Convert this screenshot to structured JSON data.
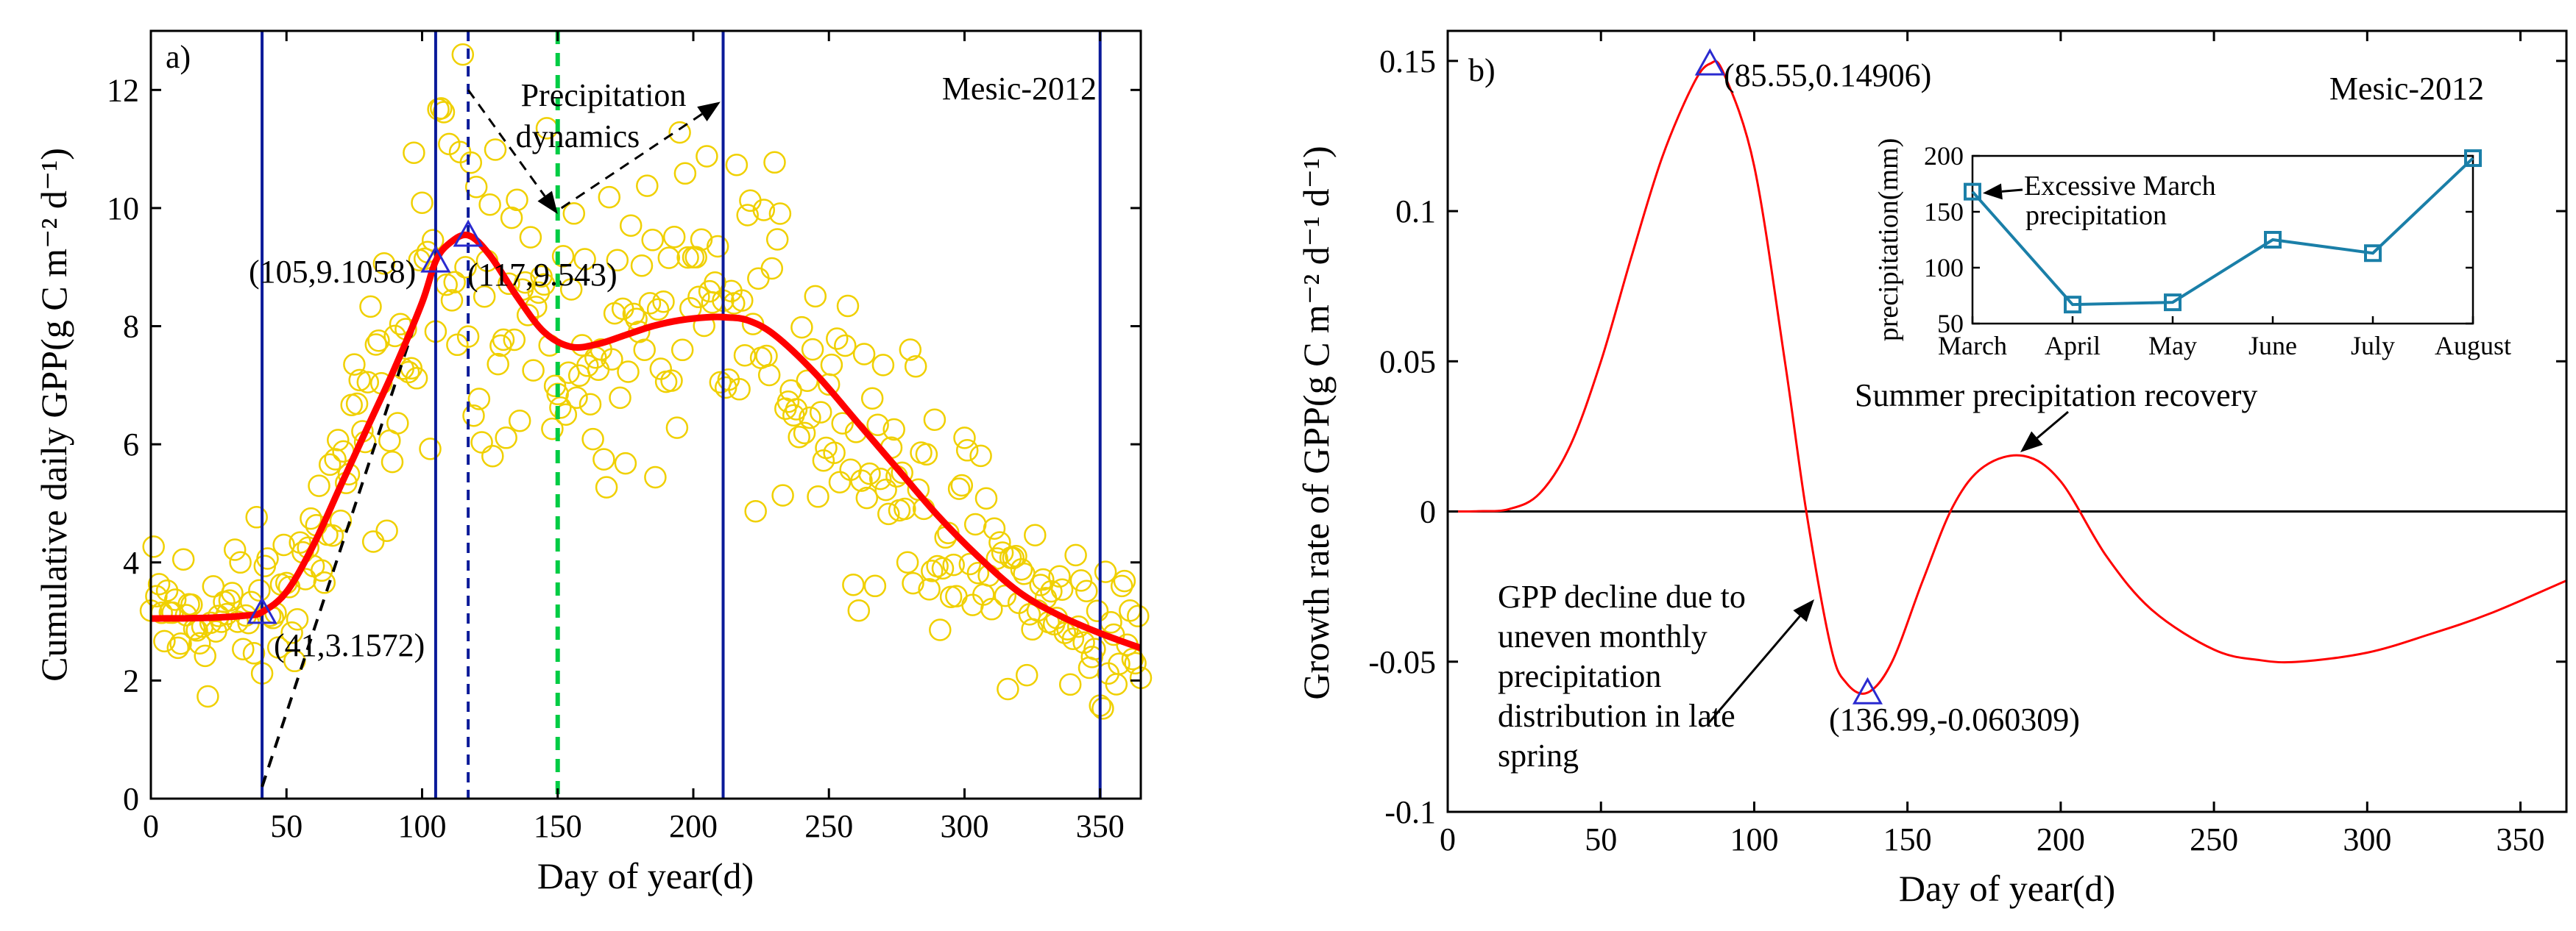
{
  "chart_data": [
    {
      "panel": "a)",
      "type": "scatter",
      "site_label": "Mesic-2012",
      "xlabel": "Day of year(d)",
      "ylabel": "Cumulative daily GPP(g C m⁻² d⁻¹)",
      "xlim": [
        0,
        365
      ],
      "ylim": [
        0,
        13
      ],
      "xticks": [
        0,
        50,
        100,
        150,
        200,
        250,
        300,
        350
      ],
      "yticks": [
        0,
        2,
        4,
        6,
        8,
        10,
        12
      ],
      "scatter_color": "#f0d000",
      "fit_curve": {
        "color": "#ff0000",
        "x": [
          0,
          20,
          35,
          41,
          50,
          60,
          70,
          80,
          90,
          100,
          105,
          110,
          117,
          125,
          135,
          145,
          155,
          165,
          175,
          185,
          195,
          205,
          212,
          220,
          230,
          245,
          260,
          275,
          290,
          305,
          320,
          335,
          350,
          365
        ],
        "y": [
          3.05,
          3.06,
          3.1,
          3.16,
          3.5,
          4.3,
          5.3,
          6.3,
          7.3,
          8.4,
          9.1,
          9.4,
          9.54,
          9.2,
          8.5,
          7.9,
          7.65,
          7.7,
          7.85,
          8.0,
          8.1,
          8.15,
          8.15,
          8.1,
          7.85,
          7.2,
          6.4,
          5.6,
          4.8,
          4.1,
          3.5,
          3.1,
          2.8,
          2.55
        ]
      },
      "vertical_lines": [
        {
          "x": 41,
          "style": "solid",
          "color": "#0a1a99"
        },
        {
          "x": 105,
          "style": "solid",
          "color": "#0a1a99"
        },
        {
          "x": 117,
          "style": "dashed",
          "color": "#0a1a99"
        },
        {
          "x": 150,
          "style": "dashed",
          "color": "#00cc44"
        },
        {
          "x": 211,
          "style": "solid",
          "color": "#0a1a99"
        },
        {
          "x": 350,
          "style": "solid",
          "color": "#0a1a99"
        }
      ],
      "tangent_line": {
        "x": [
          41,
          105
        ],
        "y": [
          0.2,
          9.1
        ]
      },
      "markers": [
        {
          "x": 41,
          "y": 3.1572,
          "label": "(41,3.1572)"
        },
        {
          "x": 105,
          "y": 9.1058,
          "label": "(105,9.1058)"
        },
        {
          "x": 117,
          "y": 9.543,
          "label": "(117,9.543)"
        }
      ],
      "annotation": {
        "line1": "Precipitation",
        "line2": "dynamics",
        "arrow_tip_1": [
          150,
          9.9
        ],
        "arrow_tip_2": [
          210,
          11.8
        ],
        "arrow_base": [
          117,
          12.0
        ]
      },
      "observations": {
        "x_start": 0,
        "x_end": 365,
        "count": 365
      }
    },
    {
      "panel": "b)",
      "type": "line",
      "site_label": "Mesic-2012",
      "xlabel": "Day of year(d)",
      "ylabel": "Growth rate of GPP(g C m⁻² d⁻¹ d⁻¹)",
      "xlim": [
        0,
        365
      ],
      "ylim": [
        -0.1,
        0.16
      ],
      "xticks": [
        0,
        50,
        100,
        150,
        200,
        250,
        300,
        350
      ],
      "yticks": [
        -0.1,
        -0.05,
        0,
        0.05,
        0.1,
        0.15
      ],
      "ytick_labels": [
        "-0.1",
        "-0.05",
        "0",
        "0.05",
        "0.1",
        "0.15"
      ],
      "line_color": "#ff0000",
      "curve": {
        "x": [
          0,
          10,
          20,
          30,
          40,
          50,
          60,
          70,
          80,
          85.55,
          90,
          100,
          110,
          117,
          125,
          130,
          136.99,
          145,
          155,
          165,
          175,
          188,
          200,
          215,
          230,
          250,
          265,
          278,
          300,
          320,
          340,
          365
        ],
        "y": [
          0,
          0.0001,
          0.0008,
          0.006,
          0.022,
          0.05,
          0.085,
          0.118,
          0.142,
          0.14906,
          0.146,
          0.115,
          0.05,
          0.0,
          -0.045,
          -0.057,
          -0.060309,
          -0.05,
          -0.023,
          0.002,
          0.015,
          0.0185,
          0.01,
          -0.015,
          -0.033,
          -0.046,
          -0.0495,
          -0.05,
          -0.047,
          -0.041,
          -0.034,
          -0.023
        ]
      },
      "zero_line": 0,
      "markers": [
        {
          "x": 85.55,
          "y": 0.14906,
          "label": "(85.55,0.14906)"
        },
        {
          "x": 136.99,
          "y": -0.060309,
          "label": "(136.99,-0.060309)"
        }
      ],
      "annotations": {
        "summer": "Summer precipitation recovery",
        "decline_lines": [
          "GPP decline due to",
          "uneven monthly",
          "precipitation",
          "distribution in late",
          "spring"
        ]
      },
      "inset": {
        "type": "line",
        "ylabel": "precipitation(mm)",
        "categories": [
          "March",
          "April",
          "May",
          "June",
          "July",
          "August"
        ],
        "values": [
          168,
          67,
          69,
          125,
          113,
          198
        ],
        "ylim": [
          50,
          200
        ],
        "yticks": [
          50,
          100,
          150,
          200
        ],
        "line_color": "#1a7fa8",
        "note_lines": [
          "Excessive March",
          "precipitation"
        ]
      }
    }
  ]
}
